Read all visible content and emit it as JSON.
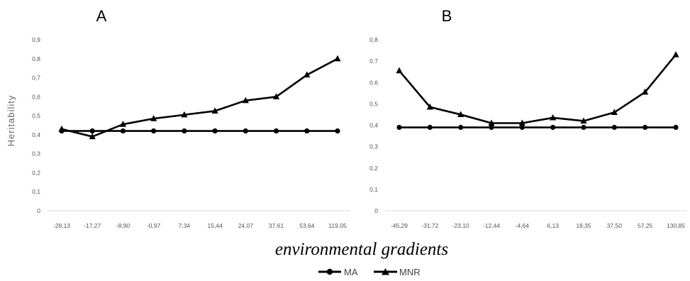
{
  "figure": {
    "xlabel": "environmental gradients",
    "ylabel": "Heritability",
    "legend": [
      {
        "name": "MA",
        "marker": "circle"
      },
      {
        "name": "MNR",
        "marker": "triangle"
      }
    ]
  },
  "chart_data": [
    {
      "type": "line",
      "panel": "A",
      "title": "A",
      "categories": [
        "-28,13",
        "-17,27",
        "-8,90",
        "-0,97",
        "7,34",
        "15,44",
        "24,07",
        "37,61",
        "53,64",
        "119,05"
      ],
      "ylim": [
        0,
        0.9
      ],
      "yticks": [
        "0",
        "0,1",
        "0,2",
        "0,3",
        "0,4",
        "0,5",
        "0,6",
        "0,7",
        "0,8",
        "0,9"
      ],
      "ylabel": "Heritability",
      "xlabel": "environmental gradients",
      "grid": false,
      "legend_position": "bottom-center",
      "series": [
        {
          "name": "MA",
          "marker": "circle",
          "color": "#000000",
          "values": [
            0.42,
            0.42,
            0.42,
            0.42,
            0.42,
            0.42,
            0.42,
            0.42,
            0.42,
            0.42
          ]
        },
        {
          "name": "MNR",
          "marker": "triangle",
          "color": "#000000",
          "values": [
            0.43,
            0.39,
            0.455,
            0.485,
            0.505,
            0.525,
            0.58,
            0.6,
            0.715,
            0.8
          ]
        }
      ]
    },
    {
      "type": "line",
      "panel": "B",
      "title": "B",
      "categories": [
        "-45,29",
        "-31,72",
        "-23,10",
        "-12,44",
        "-4,64",
        "6,13",
        "18,35",
        "37,50",
        "57,25",
        "130,85"
      ],
      "ylim": [
        0,
        0.8
      ],
      "yticks": [
        "0",
        "0,1",
        "0,2",
        "0,3",
        "0,4",
        "0,5",
        "0,6",
        "0,7",
        "0,8"
      ],
      "xlabel": "environmental gradients",
      "grid": false,
      "legend_position": "bottom-center",
      "series": [
        {
          "name": "MA",
          "marker": "circle",
          "color": "#000000",
          "values": [
            0.39,
            0.39,
            0.39,
            0.39,
            0.39,
            0.39,
            0.39,
            0.39,
            0.39,
            0.39
          ]
        },
        {
          "name": "MNR",
          "marker": "triangle",
          "color": "#000000",
          "values": [
            0.655,
            0.485,
            0.45,
            0.41,
            0.41,
            0.435,
            0.42,
            0.46,
            0.555,
            0.73
          ]
        }
      ]
    }
  ]
}
